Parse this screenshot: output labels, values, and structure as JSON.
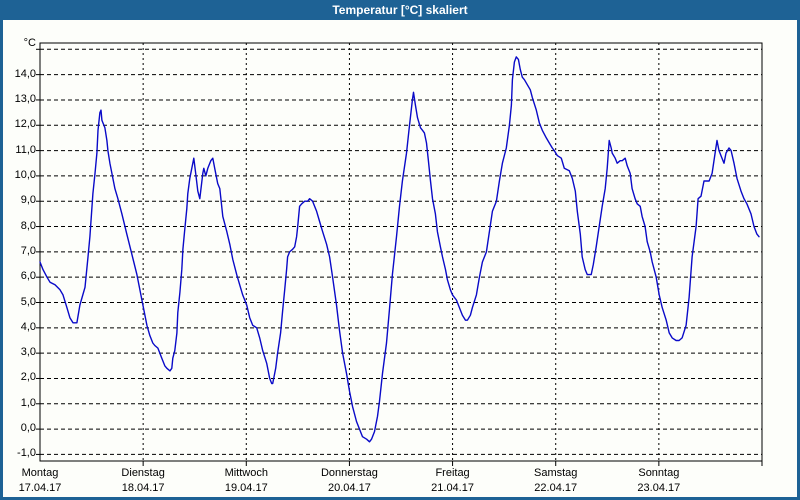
{
  "window": {
    "title": "Temperatur [°C] skaliert"
  },
  "chart": {
    "unit_label": "°C",
    "colors": {
      "frame_blue": "#1E6295",
      "plot_background": "#FDFEFA",
      "line_blue": "#0A0AC8",
      "grid_black": "#000000",
      "title_text": "#FFFFFF"
    }
  },
  "chart_data": {
    "type": "line",
    "title": "Temperatur [°C] skaliert",
    "ylabel": "°C",
    "xlabel": "",
    "ylim": [
      -1,
      15
    ],
    "ytick_step": 1,
    "ytick_labels": [
      "14,0",
      "13,0",
      "12,0",
      "11,0",
      "10,0",
      "9,0",
      "8,0",
      "7,0",
      "6,0",
      "5,0",
      "4,0",
      "3,0",
      "2,0",
      "1,0",
      "0,0",
      "-1,0"
    ],
    "ytick_values": [
      14,
      13,
      12,
      11,
      10,
      9,
      8,
      7,
      6,
      5,
      4,
      3,
      2,
      1,
      0,
      -1
    ],
    "grid": "dashed",
    "legend": "none",
    "x_axis_days": [
      {
        "name": "Montag",
        "date": "17.04.17"
      },
      {
        "name": "Dienstag",
        "date": "18.04.17"
      },
      {
        "name": "Mittwoch",
        "date": "19.04.17"
      },
      {
        "name": "Donnerstag",
        "date": "20.04.17"
      },
      {
        "name": "Freitag",
        "date": "21.04.17"
      },
      {
        "name": "Samstag",
        "date": "22.04.17"
      },
      {
        "name": "Sonntag",
        "date": "23.04.17"
      }
    ],
    "x_unit": "days_since_monday_midnight",
    "series": [
      {
        "name": "Temperatur",
        "color": "#0A0AC8",
        "points": [
          [
            0.0,
            6.6
          ],
          [
            0.029,
            6.3
          ],
          [
            0.068,
            6.0
          ],
          [
            0.097,
            5.8
          ],
          [
            0.145,
            5.7
          ],
          [
            0.194,
            5.5
          ],
          [
            0.223,
            5.3
          ],
          [
            0.261,
            4.8
          ],
          [
            0.29,
            4.4
          ],
          [
            0.32,
            4.2
          ],
          [
            0.358,
            4.2
          ],
          [
            0.387,
            4.9
          ],
          [
            0.436,
            5.6
          ],
          [
            0.465,
            6.8
          ],
          [
            0.484,
            7.6
          ],
          [
            0.513,
            9.3
          ],
          [
            0.533,
            10.1
          ],
          [
            0.552,
            10.9
          ],
          [
            0.562,
            11.8
          ],
          [
            0.581,
            12.5
          ],
          [
            0.591,
            12.6
          ],
          [
            0.6,
            12.2
          ],
          [
            0.62,
            12.0
          ],
          [
            0.629,
            11.9
          ],
          [
            0.649,
            11.4
          ],
          [
            0.658,
            11.0
          ],
          [
            0.678,
            10.5
          ],
          [
            0.697,
            10.1
          ],
          [
            0.726,
            9.5
          ],
          [
            0.755,
            9.1
          ],
          [
            0.794,
            8.5
          ],
          [
            0.842,
            7.7
          ],
          [
            0.891,
            6.9
          ],
          [
            0.939,
            6.1
          ],
          [
            0.988,
            5.1
          ],
          [
            1.007,
            4.7
          ],
          [
            1.036,
            4.1
          ],
          [
            1.065,
            3.7
          ],
          [
            1.094,
            3.4
          ],
          [
            1.113,
            3.3
          ],
          [
            1.143,
            3.2
          ],
          [
            1.181,
            2.8
          ],
          [
            1.21,
            2.5
          ],
          [
            1.23,
            2.4
          ],
          [
            1.259,
            2.3
          ],
          [
            1.278,
            2.4
          ],
          [
            1.288,
            2.8
          ],
          [
            1.307,
            3.1
          ],
          [
            1.327,
            3.8
          ],
          [
            1.336,
            4.6
          ],
          [
            1.356,
            5.4
          ],
          [
            1.375,
            6.3
          ],
          [
            1.385,
            7.1
          ],
          [
            1.404,
            7.9
          ],
          [
            1.423,
            8.7
          ],
          [
            1.433,
            9.3
          ],
          [
            1.452,
            9.9
          ],
          [
            1.472,
            10.3
          ],
          [
            1.491,
            10.7
          ],
          [
            1.51,
            10.1
          ],
          [
            1.53,
            9.4
          ],
          [
            1.549,
            9.1
          ],
          [
            1.578,
            10.1
          ],
          [
            1.588,
            10.3
          ],
          [
            1.607,
            10.0
          ],
          [
            1.627,
            10.3
          ],
          [
            1.656,
            10.6
          ],
          [
            1.675,
            10.7
          ],
          [
            1.694,
            10.3
          ],
          [
            1.723,
            9.7
          ],
          [
            1.743,
            9.5
          ],
          [
            1.772,
            8.4
          ],
          [
            1.811,
            7.8
          ],
          [
            1.84,
            7.3
          ],
          [
            1.869,
            6.7
          ],
          [
            1.907,
            6.1
          ],
          [
            1.936,
            5.7
          ],
          [
            1.965,
            5.3
          ],
          [
            2.004,
            4.9
          ],
          [
            2.033,
            4.4
          ],
          [
            2.062,
            4.1
          ],
          [
            2.101,
            4.0
          ],
          [
            2.13,
            3.6
          ],
          [
            2.159,
            3.1
          ],
          [
            2.198,
            2.6
          ],
          [
            2.227,
            2.0
          ],
          [
            2.246,
            1.8
          ],
          [
            2.256,
            1.8
          ],
          [
            2.285,
            2.4
          ],
          [
            2.304,
            3.0
          ],
          [
            2.333,
            3.8
          ],
          [
            2.353,
            4.7
          ],
          [
            2.372,
            5.5
          ],
          [
            2.391,
            6.3
          ],
          [
            2.401,
            6.8
          ],
          [
            2.42,
            7.0
          ],
          [
            2.449,
            7.1
          ],
          [
            2.469,
            7.2
          ],
          [
            2.488,
            7.6
          ],
          [
            2.498,
            8.0
          ],
          [
            2.517,
            8.8
          ],
          [
            2.537,
            8.9
          ],
          [
            2.566,
            9.0
          ],
          [
            2.595,
            9.0
          ],
          [
            2.614,
            9.1
          ],
          [
            2.643,
            9.0
          ],
          [
            2.682,
            8.6
          ],
          [
            2.711,
            8.2
          ],
          [
            2.74,
            7.8
          ],
          [
            2.779,
            7.3
          ],
          [
            2.808,
            6.8
          ],
          [
            2.837,
            6.0
          ],
          [
            2.875,
            4.9
          ],
          [
            2.904,
            3.9
          ],
          [
            2.934,
            3.0
          ],
          [
            2.972,
            2.2
          ],
          [
            3.001,
            1.5
          ],
          [
            3.03,
            0.9
          ],
          [
            3.069,
            0.3
          ],
          [
            3.098,
            0.0
          ],
          [
            3.127,
            -0.3
          ],
          [
            3.166,
            -0.4
          ],
          [
            3.195,
            -0.5
          ],
          [
            3.214,
            -0.4
          ],
          [
            3.243,
            -0.1
          ],
          [
            3.272,
            0.5
          ],
          [
            3.292,
            1.1
          ],
          [
            3.321,
            2.2
          ],
          [
            3.359,
            3.4
          ],
          [
            3.388,
            4.7
          ],
          [
            3.417,
            6.1
          ],
          [
            3.456,
            7.6
          ],
          [
            3.485,
            8.8
          ],
          [
            3.514,
            9.8
          ],
          [
            3.553,
            10.9
          ],
          [
            3.582,
            12.0
          ],
          [
            3.611,
            13.0
          ],
          [
            3.621,
            13.3
          ],
          [
            3.64,
            12.8
          ],
          [
            3.66,
            12.3
          ],
          [
            3.689,
            11.9
          ],
          [
            3.708,
            11.8
          ],
          [
            3.727,
            11.7
          ],
          [
            3.747,
            11.3
          ],
          [
            3.766,
            10.6
          ],
          [
            3.786,
            9.8
          ],
          [
            3.805,
            9.1
          ],
          [
            3.834,
            8.5
          ],
          [
            3.853,
            7.8
          ],
          [
            3.882,
            7.2
          ],
          [
            3.902,
            6.8
          ],
          [
            3.931,
            6.3
          ],
          [
            3.95,
            5.9
          ],
          [
            3.979,
            5.5
          ],
          [
            3.999,
            5.3
          ],
          [
            4.037,
            5.1
          ],
          [
            4.066,
            4.8
          ],
          [
            4.095,
            4.5
          ],
          [
            4.125,
            4.3
          ],
          [
            4.144,
            4.3
          ],
          [
            4.173,
            4.5
          ],
          [
            4.192,
            4.8
          ],
          [
            4.231,
            5.3
          ],
          [
            4.26,
            6.0
          ],
          [
            4.289,
            6.6
          ],
          [
            4.328,
            7.0
          ],
          [
            4.357,
            7.8
          ],
          [
            4.386,
            8.6
          ],
          [
            4.425,
            9.0
          ],
          [
            4.454,
            9.8
          ],
          [
            4.483,
            10.5
          ],
          [
            4.521,
            11.1
          ],
          [
            4.551,
            12.0
          ],
          [
            4.57,
            12.8
          ],
          [
            4.58,
            13.8
          ],
          [
            4.599,
            14.5
          ],
          [
            4.618,
            14.7
          ],
          [
            4.638,
            14.6
          ],
          [
            4.657,
            14.2
          ],
          [
            4.676,
            13.9
          ],
          [
            4.696,
            13.8
          ],
          [
            4.725,
            13.6
          ],
          [
            4.754,
            13.4
          ],
          [
            4.773,
            13.1
          ],
          [
            4.812,
            12.6
          ],
          [
            4.841,
            12.1
          ],
          [
            4.87,
            11.8
          ],
          [
            4.909,
            11.5
          ],
          [
            4.938,
            11.3
          ],
          [
            4.967,
            11.1
          ],
          [
            4.986,
            11.0
          ],
          [
            5.015,
            10.8
          ],
          [
            5.054,
            10.7
          ],
          [
            5.083,
            10.3
          ],
          [
            5.132,
            10.2
          ],
          [
            5.161,
            9.9
          ],
          [
            5.19,
            9.4
          ],
          [
            5.209,
            8.6
          ],
          [
            5.238,
            7.7
          ],
          [
            5.257,
            6.8
          ],
          [
            5.286,
            6.3
          ],
          [
            5.306,
            6.1
          ],
          [
            5.344,
            6.1
          ],
          [
            5.364,
            6.5
          ],
          [
            5.393,
            7.2
          ],
          [
            5.422,
            8.0
          ],
          [
            5.451,
            8.8
          ],
          [
            5.48,
            9.5
          ],
          [
            5.499,
            10.3
          ],
          [
            5.519,
            11.4
          ],
          [
            5.538,
            11.1
          ],
          [
            5.548,
            10.9
          ],
          [
            5.577,
            10.7
          ],
          [
            5.596,
            10.5
          ],
          [
            5.625,
            10.6
          ],
          [
            5.645,
            10.6
          ],
          [
            5.674,
            10.7
          ],
          [
            5.693,
            10.4
          ],
          [
            5.722,
            10.1
          ],
          [
            5.741,
            9.5
          ],
          [
            5.77,
            9.1
          ],
          [
            5.79,
            8.9
          ],
          [
            5.819,
            8.8
          ],
          [
            5.838,
            8.4
          ],
          [
            5.867,
            8.0
          ],
          [
            5.887,
            7.4
          ],
          [
            5.916,
            7.0
          ],
          [
            5.935,
            6.6
          ],
          [
            5.974,
            6.0
          ],
          [
            6.003,
            5.3
          ],
          [
            6.032,
            4.8
          ],
          [
            6.071,
            4.3
          ],
          [
            6.1,
            3.8
          ],
          [
            6.129,
            3.6
          ],
          [
            6.167,
            3.5
          ],
          [
            6.196,
            3.5
          ],
          [
            6.225,
            3.6
          ],
          [
            6.264,
            4.1
          ],
          [
            6.293,
            5.2
          ],
          [
            6.322,
            6.8
          ],
          [
            6.361,
            8.0
          ],
          [
            6.38,
            9.1
          ],
          [
            6.409,
            9.2
          ],
          [
            6.438,
            9.8
          ],
          [
            6.487,
            9.8
          ],
          [
            6.516,
            10.1
          ],
          [
            6.545,
            10.9
          ],
          [
            6.564,
            11.4
          ],
          [
            6.583,
            11.0
          ],
          [
            6.612,
            10.7
          ],
          [
            6.632,
            10.5
          ],
          [
            6.651,
            10.9
          ],
          [
            6.68,
            11.1
          ],
          [
            6.7,
            11.0
          ],
          [
            6.729,
            10.5
          ],
          [
            6.758,
            9.9
          ],
          [
            6.796,
            9.4
          ],
          [
            6.825,
            9.1
          ],
          [
            6.854,
            8.9
          ],
          [
            6.893,
            8.5
          ],
          [
            6.922,
            8.0
          ],
          [
            6.951,
            7.7
          ],
          [
            6.971,
            7.6
          ]
        ]
      }
    ]
  }
}
